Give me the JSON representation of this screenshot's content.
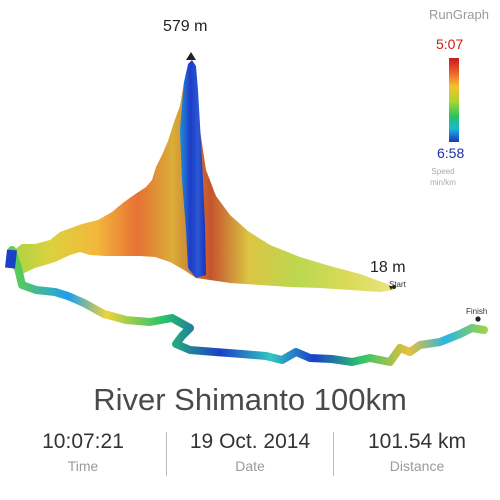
{
  "app": {
    "name": "RunGraph"
  },
  "chart": {
    "peak_elevation": "579 m",
    "start_elevation": "18 m",
    "start_label": "Start",
    "finish_label": "Finish"
  },
  "legend": {
    "max_value": "5:07",
    "min_value": "6:58",
    "title": "Speed",
    "unit": "min/km",
    "max_color": "#c8191c",
    "min_color": "#1c34c4"
  },
  "route": {
    "title": "River Shimanto 100km"
  },
  "stats": [
    {
      "value": "10:07:21",
      "label": "Time"
    },
    {
      "value": "19 Oct. 2014",
      "label": "Date"
    },
    {
      "value": "101.54 km",
      "label": "Distance"
    }
  ]
}
